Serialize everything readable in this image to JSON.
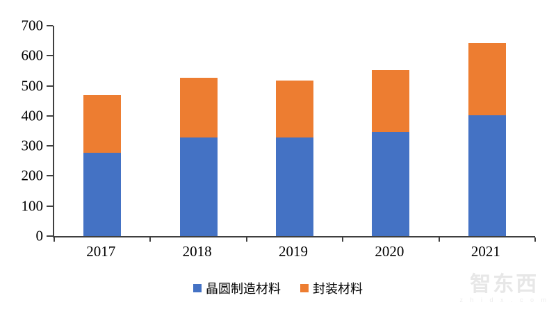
{
  "chart_data": {
    "type": "bar",
    "subtype": "stacked-vertical",
    "title": "",
    "xlabel": "",
    "ylabel": "",
    "categories": [
      "2017",
      "2018",
      "2019",
      "2020",
      "2021"
    ],
    "series": [
      {
        "name": "晶圆制造材料",
        "color": "#4472C4",
        "values": [
          277,
          327,
          327,
          346,
          401
        ]
      },
      {
        "name": "封装材料",
        "color": "#ED7D31",
        "values": [
          191,
          200,
          191,
          206,
          241
        ]
      }
    ],
    "stack_totals": [
      468,
      527,
      518,
      552,
      642
    ],
    "ylim": [
      0,
      700
    ],
    "ytick_step": 100,
    "yticks": [
      0,
      100,
      200,
      300,
      400,
      500,
      600,
      700
    ],
    "grid": false,
    "axis_color": "#3f3f3f",
    "legend_position": "bottom"
  },
  "legend": {
    "items": [
      {
        "label": "晶圆制造材料",
        "color": "#4472C4"
      },
      {
        "label": "封装材料",
        "color": "#ED7D31"
      }
    ]
  },
  "watermark": {
    "text": "智东西",
    "subtext": "z h i d x . c o m"
  }
}
